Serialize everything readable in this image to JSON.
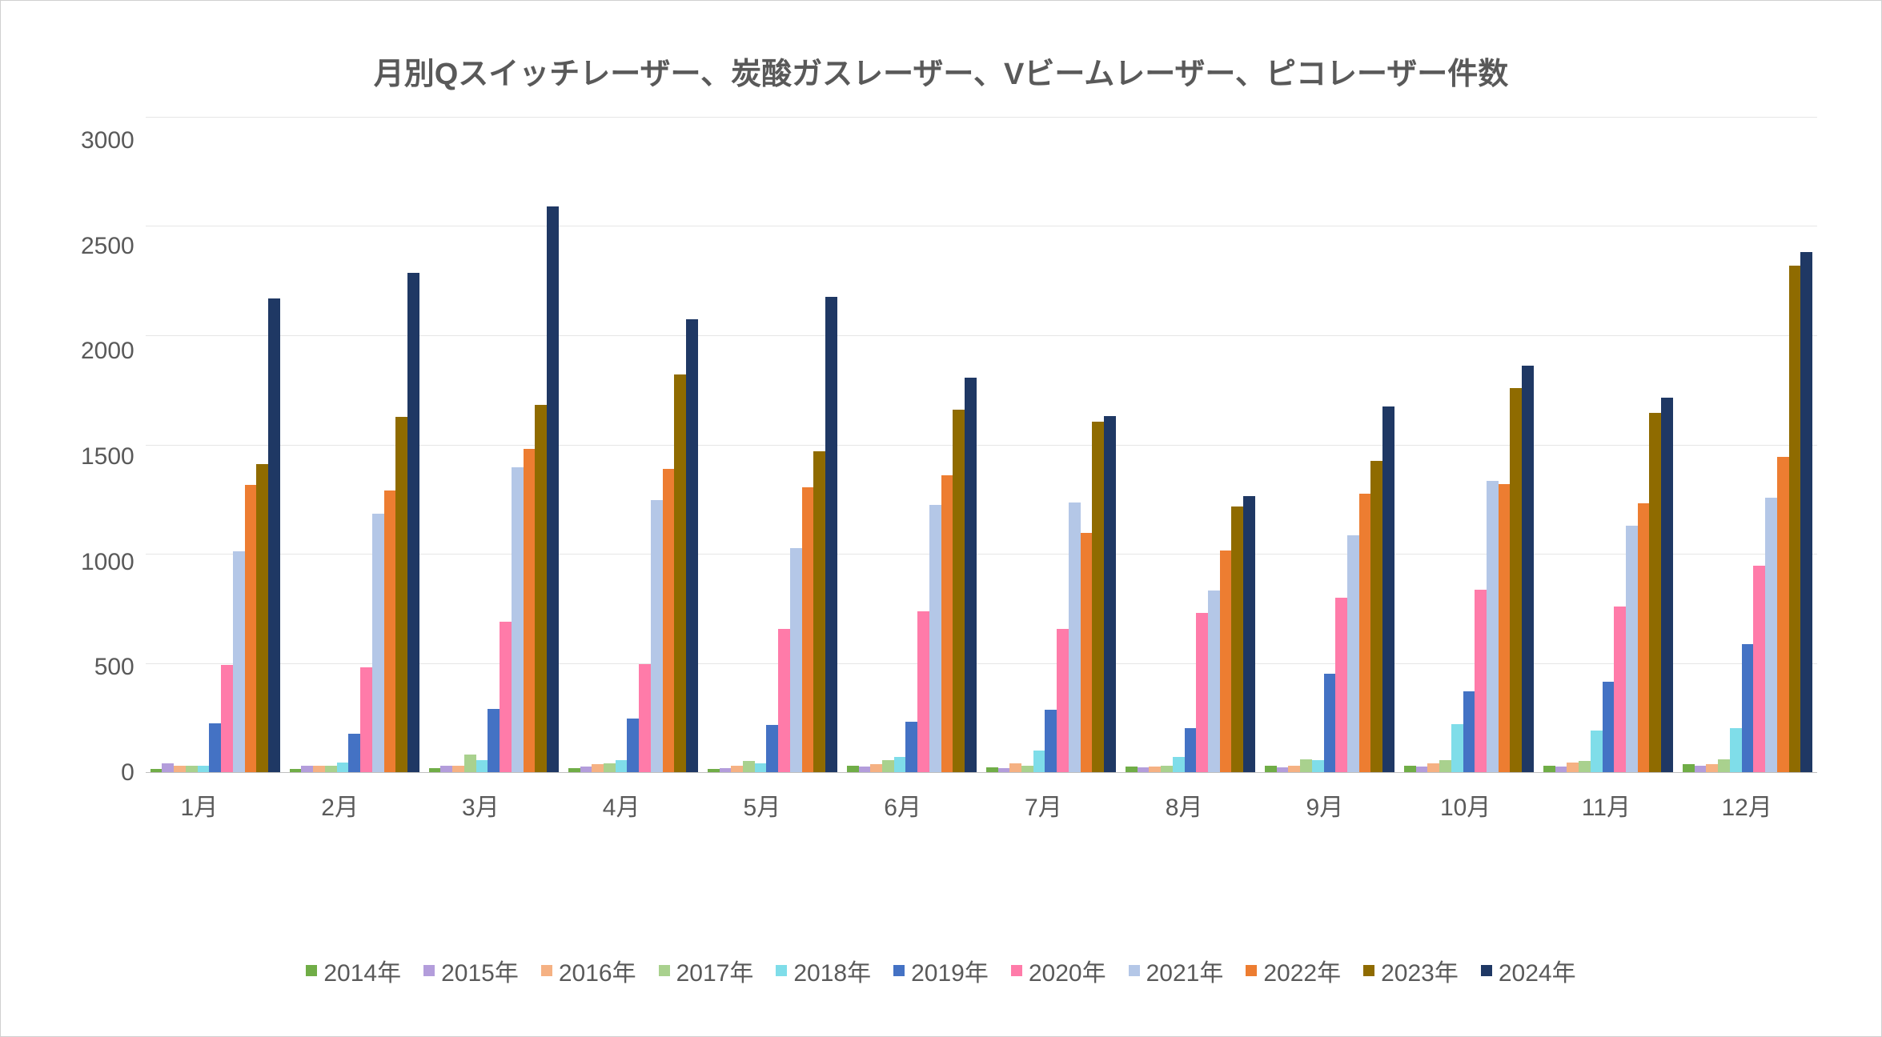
{
  "chart": {
    "type": "bar",
    "title": "月別Qスイッチレーザー、炭酸ガスレーザー、Vビームレーザー、ピコレーザー件数",
    "title_fontsize": 38,
    "title_color": "#595959",
    "background_color": "#ffffff",
    "border_color": "#d0d0d0",
    "grid_color": "#e6e6e6",
    "axis_color": "#bfbfbf",
    "label_color": "#595959",
    "axis_fontsize": 30,
    "legend_fontsize": 30,
    "ylim": [
      0,
      3000
    ],
    "ytick_step": 500,
    "yticks": [
      0,
      500,
      1000,
      1500,
      2000,
      2500,
      3000
    ],
    "categories": [
      "1月",
      "2月",
      "3月",
      "4月",
      "5月",
      "6月",
      "7月",
      "8月",
      "9月",
      "10月",
      "11月",
      "12月"
    ],
    "series": [
      {
        "name": "2014年",
        "color": "#70ad47",
        "values": [
          15,
          15,
          18,
          20,
          15,
          30,
          22,
          25,
          28,
          30,
          28,
          35
        ]
      },
      {
        "name": "2015年",
        "color": "#b39ddb",
        "values": [
          40,
          30,
          30,
          25,
          20,
          25,
          20,
          22,
          22,
          25,
          25,
          30
        ]
      },
      {
        "name": "2016年",
        "color": "#f5b183",
        "values": [
          30,
          28,
          30,
          35,
          28,
          35,
          40,
          25,
          30,
          40,
          45,
          38
        ]
      },
      {
        "name": "2017年",
        "color": "#a9d18e",
        "values": [
          30,
          30,
          80,
          40,
          50,
          55,
          30,
          28,
          60,
          55,
          50,
          60
        ]
      },
      {
        "name": "2018年",
        "color": "#7fdde9",
        "values": [
          28,
          45,
          55,
          55,
          40,
          70,
          100,
          70,
          55,
          220,
          190,
          200
        ]
      },
      {
        "name": "2019年",
        "color": "#4472c4",
        "values": [
          225,
          175,
          290,
          245,
          215,
          230,
          285,
          200,
          450,
          370,
          415,
          585
        ]
      },
      {
        "name": "2020年",
        "color": "#ff7ba9",
        "values": [
          490,
          480,
          690,
          495,
          655,
          735,
          655,
          730,
          800,
          835,
          760,
          945
        ]
      },
      {
        "name": "2021年",
        "color": "#b4c7e7",
        "values": [
          1010,
          1185,
          1395,
          1245,
          1025,
          1225,
          1235,
          830,
          1085,
          1335,
          1130,
          1255
        ]
      },
      {
        "name": "2022年",
        "color": "#ed7d31",
        "values": [
          1315,
          1290,
          1480,
          1390,
          1305,
          1360,
          1095,
          1015,
          1275,
          1320,
          1230,
          1445
        ]
      },
      {
        "name": "2023年",
        "color": "#8f6b00",
        "values": [
          1410,
          1625,
          1680,
          1820,
          1470,
          1660,
          1605,
          1215,
          1425,
          1760,
          1645,
          2320
        ]
      },
      {
        "name": "2024年",
        "color": "#1f3864",
        "values": [
          2170,
          2285,
          2590,
          2075,
          2175,
          1805,
          1630,
          1265,
          1675,
          1860,
          1715,
          2380
        ]
      }
    ]
  }
}
